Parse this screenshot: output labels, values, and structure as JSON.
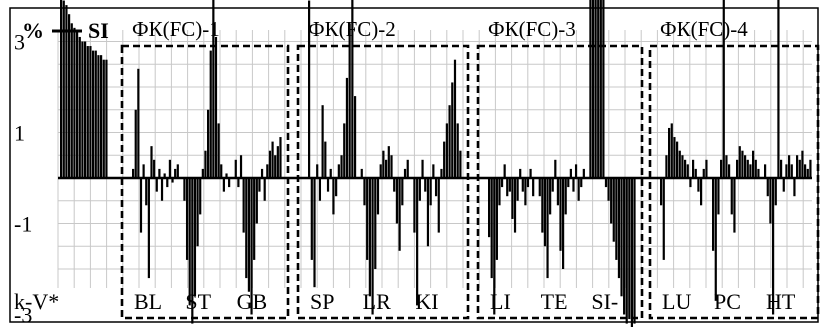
{
  "chart_data": {
    "type": "bar",
    "y_unit": "%",
    "series_name": "SI",
    "x_label": "k-V*",
    "ylim": [
      -3.5,
      4.2
    ],
    "y_ticks": [
      3,
      1,
      -1,
      -3
    ],
    "y_tick_labels": [
      "3",
      "1",
      "-1",
      "-3"
    ],
    "grid": true,
    "groups": [
      {
        "label": "ФК(FC)-1",
        "subgroups": [
          {
            "label": "BL",
            "values": [
              0.2,
              1.5,
              2.4,
              -1.2,
              0.3,
              -0.6,
              -2.2,
              0.7,
              0.4,
              -0.3,
              0.2,
              -0.5,
              0.1,
              -0.2,
              0.4,
              -0.1,
              0.2,
              0.3
            ]
          },
          {
            "label": "ST",
            "values": [
              -0.5,
              -1.8,
              -2.8,
              -3.2,
              -2.6,
              -1.5,
              -0.8,
              0.2,
              0.6,
              1.5,
              2.8,
              4.0,
              3.1,
              1.2,
              0.3,
              -0.3,
              0.1,
              -0.2
            ]
          },
          {
            "label": "GB",
            "values": [
              0.4,
              -0.2,
              0.5,
              -1.2,
              -2.2,
              -2.5,
              -3.0,
              -1.8,
              -1.0,
              -0.3,
              0.2,
              -0.5,
              0.3,
              0.6,
              0.8,
              0.5,
              0.7,
              0.9
            ]
          }
        ]
      },
      {
        "label": "ФК(FC)-2",
        "subgroups": [
          {
            "label": "SP",
            "values": [
              3.9,
              -1.8,
              -2.4,
              0.3,
              -0.5,
              1.6,
              0.8,
              -0.3,
              0.2,
              -0.8,
              -0.4,
              0.3,
              0.5,
              1.2,
              2.2,
              3.4,
              4.0,
              1.8
            ]
          },
          {
            "label": "LR",
            "values": [
              0.2,
              -0.6,
              -1.8,
              -2.6,
              -3.0,
              -2.0,
              -0.8,
              0.3,
              0.6,
              0.4,
              0.7,
              0.5,
              -0.3,
              -1.0,
              -1.6,
              -0.6,
              0.2,
              0.4
            ]
          },
          {
            "label": "KI",
            "values": [
              -1.2,
              -2.8,
              -0.5,
              0.4,
              -0.3,
              -1.5,
              -0.6,
              0.3,
              -0.4,
              -1.2,
              0.2,
              0.8,
              1.2,
              1.6,
              2.1,
              2.6,
              1.2,
              0.6
            ]
          }
        ]
      },
      {
        "label": "ФК(FC)-3",
        "subgroups": [
          {
            "label": "LI",
            "values": [
              -1.3,
              -2.2,
              -3.0,
              -1.8,
              -0.6,
              -0.2,
              0.3,
              -0.4,
              -0.3,
              -0.9,
              -1.2,
              -0.5,
              0.2,
              -0.3,
              -0.6,
              -0.2,
              0.2,
              -0.4
            ]
          },
          {
            "label": "TE",
            "values": [
              -0.4,
              -1.2,
              -1.5,
              -2.2,
              -0.8,
              -0.3,
              0.4,
              -0.6,
              -1.6,
              -2.0,
              -0.8,
              -0.2,
              0.2,
              -0.3,
              0.3,
              -0.5,
              -0.2,
              0.2
            ]
          },
          {
            "label": "SI-",
            "values": [
              4.0,
              4.0,
              4.0,
              4.0,
              4.0,
              4.0,
              -0.2,
              -0.5,
              -1.0,
              -1.4,
              -1.8,
              -2.2,
              -2.6,
              -3.0,
              -3.2,
              -3.1,
              -3.3,
              -3.2
            ]
          }
        ]
      },
      {
        "label": "ФК(FC)-4",
        "subgroups": [
          {
            "label": "LU",
            "values": [
              -0.6,
              -1.8,
              0.5,
              1.1,
              1.2,
              0.9,
              0.8,
              0.6,
              0.5,
              0.4,
              0.3,
              -0.2,
              0.4,
              0.2,
              -0.3,
              -0.6,
              0.2,
              0.4
            ]
          },
          {
            "label": "PC",
            "values": [
              -1.6,
              -2.7,
              -0.8,
              0.4,
              4.0,
              0.5,
              0.3,
              -0.8,
              -1.2,
              0.4,
              0.7,
              0.6,
              0.5,
              0.4,
              0.3,
              0.6,
              0.4,
              0.2
            ]
          },
          {
            "label": "HT",
            "values": [
              0.3,
              -0.4,
              -1.0,
              -3.0,
              -0.6,
              4.0,
              0.4,
              -0.3,
              0.3,
              0.5,
              0.3,
              -0.4,
              0.5,
              0.4,
              0.6,
              0.3,
              0.2,
              0.4
            ]
          }
        ]
      }
    ],
    "leading_values": [
      4.1,
      3.9,
      3.8,
      3.6,
      3.4,
      3.3,
      3.2,
      3.1,
      3.0,
      3.0,
      2.9,
      2.9,
      2.8,
      2.8,
      2.7,
      2.7,
      2.6,
      2.6
    ]
  }
}
